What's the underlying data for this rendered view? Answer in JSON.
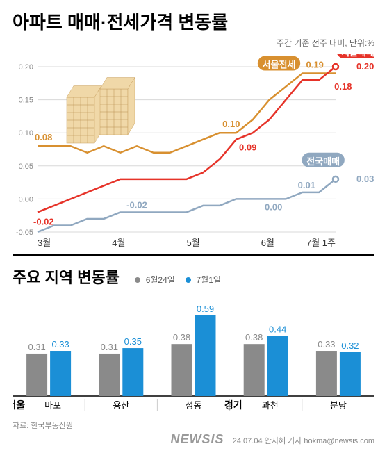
{
  "title": "아파트 매매·전세가격 변동률",
  "subtitle": "주간 기준 전주 대비, 단위:%",
  "line_chart": {
    "ylim": [
      -0.05,
      0.2
    ],
    "yticks": [
      -0.05,
      0.0,
      0.05,
      0.1,
      0.15,
      0.2
    ],
    "ytick_labels": [
      "-0.05",
      "0.00",
      "0.05",
      "0.10",
      "0.15",
      "0.20"
    ],
    "x_labels": [
      "3월",
      "4월",
      "5월",
      "6월",
      "7월 1주"
    ],
    "grid_color": "#d8d8d8",
    "background": "#ffffff",
    "series": {
      "seoul_sale": {
        "label": "서울매매",
        "color": "#e63329",
        "values": [
          -0.02,
          -0.01,
          0.0,
          0.01,
          0.02,
          0.03,
          0.03,
          0.03,
          0.03,
          0.03,
          0.04,
          0.06,
          0.09,
          0.1,
          0.12,
          0.15,
          0.18,
          0.18,
          0.2
        ],
        "start_tag": "-0.02",
        "mid_tag": "0.09",
        "near_end_tag": "0.18",
        "end_tag": "0.20"
      },
      "seoul_jeonse": {
        "label": "서울전세",
        "color": "#d89030",
        "values": [
          0.08,
          0.08,
          0.08,
          0.07,
          0.08,
          0.07,
          0.08,
          0.07,
          0.07,
          0.08,
          0.09,
          0.1,
          0.1,
          0.12,
          0.15,
          0.17,
          0.19,
          0.19,
          0.19
        ],
        "start_tag": "0.08",
        "mid_tag": "0.10",
        "end_tag": "0.19"
      },
      "national_sale": {
        "label": "전국매매",
        "color": "#90a8c0",
        "values": [
          -0.05,
          -0.04,
          -0.04,
          -0.03,
          -0.03,
          -0.02,
          -0.02,
          -0.02,
          -0.02,
          -0.02,
          -0.01,
          -0.01,
          0.0,
          0.0,
          0.0,
          0.0,
          0.01,
          0.01,
          0.03
        ],
        "mid_tag": "-0.02",
        "near_end_tag_a": "0.00",
        "near_end_tag_b": "0.01",
        "end_tag": "0.03"
      }
    }
  },
  "bar_section": {
    "title": "주요 지역 변동률",
    "legend": [
      {
        "label": "6월24일",
        "color": "#8a8a8a"
      },
      {
        "label": "7월1일",
        "color": "#1b8fd6"
      }
    ],
    "ymax": 0.65,
    "regions": [
      {
        "main": "서울",
        "sub": "마포",
        "v1": 0.31,
        "v2": 0.33,
        "l1": "0.31",
        "l2": "0.33"
      },
      {
        "main": "",
        "sub": "용산",
        "v1": 0.31,
        "v2": 0.35,
        "l1": "0.31",
        "l2": "0.35"
      },
      {
        "main": "",
        "sub": "성동",
        "v1": 0.38,
        "v2": 0.59,
        "l1": "0.38",
        "l2": "0.59"
      },
      {
        "main": "경기",
        "sub": "과천",
        "v1": 0.38,
        "v2": 0.44,
        "l1": "0.38",
        "l2": "0.44"
      },
      {
        "main": "",
        "sub": "분당",
        "v1": 0.33,
        "v2": 0.32,
        "l1": "0.33",
        "l2": "0.32"
      }
    ]
  },
  "source": "자료: 한국부동산원",
  "footer": "24.07.04 안지혜 기자 hokma@newsis.com",
  "watermark": "NEWSIS"
}
